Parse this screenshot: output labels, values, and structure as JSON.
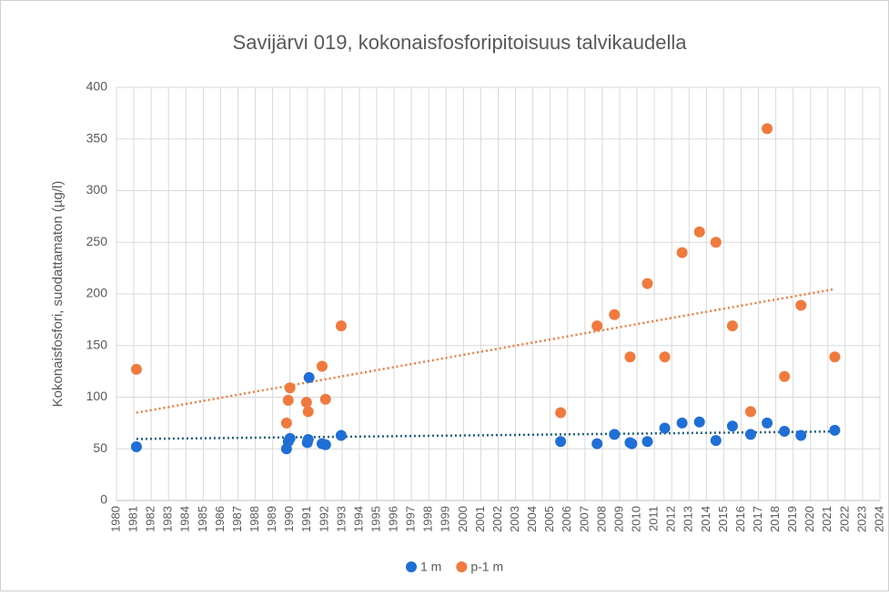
{
  "chart_data": {
    "type": "scatter",
    "title": "Savijärvi 019, kokonaisfosforipitoisuus talvikaudella",
    "y_label": "Kokonaisfosfori, suodattamaton (µg/l)",
    "xlim": [
      1980,
      2024
    ],
    "ylim": [
      0,
      400
    ],
    "yticks": [
      0,
      50,
      100,
      150,
      200,
      250,
      300,
      350,
      400
    ],
    "xticks": [
      1980,
      1981,
      1982,
      1983,
      1984,
      1985,
      1986,
      1987,
      1988,
      1989,
      1990,
      1991,
      1992,
      1993,
      1994,
      1995,
      1996,
      1997,
      1998,
      1999,
      2000,
      2001,
      2002,
      2003,
      2004,
      2005,
      2006,
      2007,
      2008,
      2009,
      2010,
      2011,
      2012,
      2013,
      2014,
      2015,
      2016,
      2017,
      2018,
      2019,
      2020,
      2021,
      2022,
      2023,
      2024
    ],
    "grid": true,
    "trendline": "linear",
    "legend": "bottom",
    "series": [
      {
        "name": "1 m",
        "color": "#1f6fd6",
        "trend_color": "#1b5f80",
        "x": [
          1981.15,
          1989.8,
          1989.9,
          1990.0,
          1991.1,
          1991.0,
          1991.05,
          1991.85,
          1992.05,
          1992.95,
          2005.6,
          2007.7,
          2008.7,
          2009.6,
          2009.7,
          2010.6,
          2011.6,
          2012.6,
          2013.6,
          2014.55,
          2015.5,
          2016.55,
          2017.5,
          2018.5,
          2019.45,
          2021.4
        ],
        "values": [
          52,
          50,
          57,
          60,
          119,
          56,
          59,
          55,
          54,
          63,
          57,
          55,
          64,
          56,
          55,
          57,
          70,
          75,
          76,
          58,
          72,
          64,
          75,
          67,
          63,
          68
        ]
      },
      {
        "name": "p-1 m",
        "color": "#f07a3e",
        "trend_color": "#f07a3e",
        "x": [
          1981.15,
          1989.8,
          1989.9,
          1990.0,
          1990.95,
          1991.05,
          1991.85,
          1992.05,
          1992.95,
          2005.6,
          2007.7,
          2008.7,
          2009.6,
          2010.6,
          2011.6,
          2012.6,
          2013.6,
          2014.55,
          2015.5,
          2016.55,
          2017.5,
          2018.5,
          2019.45,
          2021.4
        ],
        "values": [
          127,
          75,
          97,
          109,
          95,
          86,
          130,
          98,
          169,
          85,
          169,
          180,
          139,
          210,
          139,
          240,
          260,
          250,
          169,
          86,
          360,
          120,
          189,
          139
        ]
      }
    ]
  }
}
